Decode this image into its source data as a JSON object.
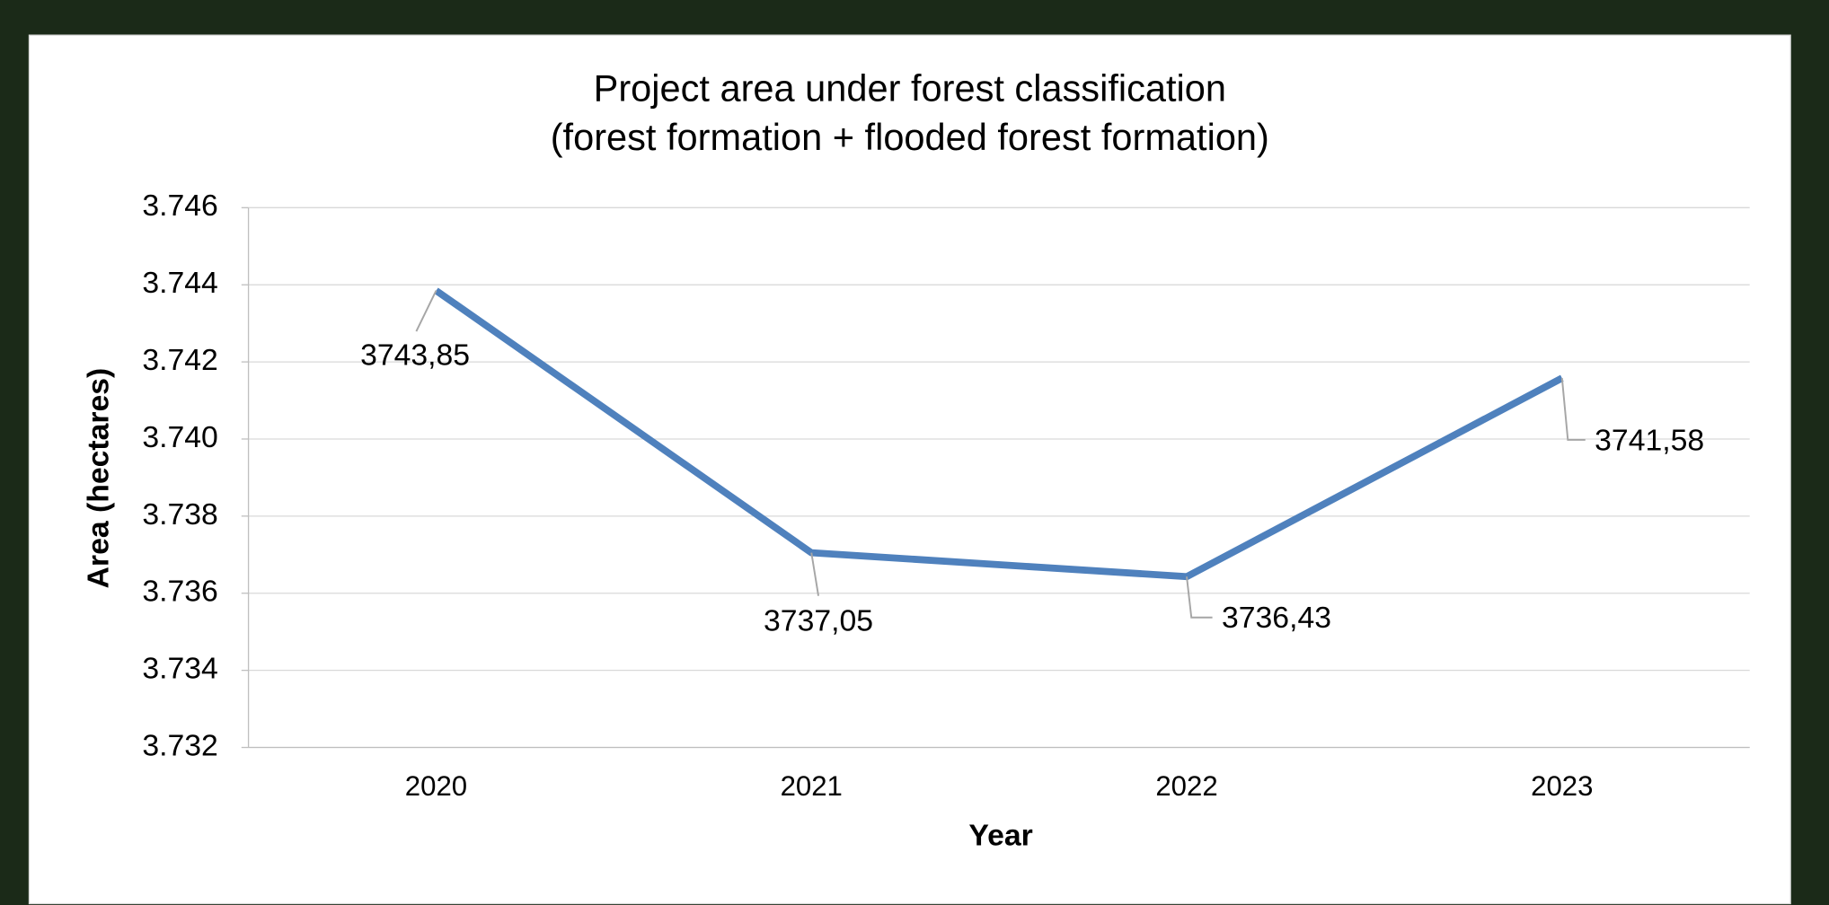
{
  "chart_data": {
    "type": "line",
    "title": "Project area under forest classification",
    "subtitle": "(forest formation + flooded forest formation)",
    "x_label": "Year",
    "y_label": "Area (hectares)",
    "categories": [
      "2020",
      "2021",
      "2022",
      "2023"
    ],
    "series": [
      {
        "name": "Area",
        "color": "#4f81bd",
        "values": [
          3743.85,
          3737.05,
          3736.43,
          3741.58
        ],
        "value_labels": [
          "3743,85",
          "3737,05",
          "3736,43",
          "3741,58"
        ]
      }
    ],
    "ylim": [
      3732,
      3746
    ],
    "yticks": [
      {
        "value": 3732,
        "label": "3.732"
      },
      {
        "value": 3734,
        "label": "3.734"
      },
      {
        "value": 3736,
        "label": "3.736"
      },
      {
        "value": 3738,
        "label": "3.738"
      },
      {
        "value": 3740,
        "label": "3.740"
      },
      {
        "value": 3742,
        "label": "3.742"
      },
      {
        "value": 3744,
        "label": "3.744"
      },
      {
        "value": 3746,
        "label": "3.746"
      }
    ],
    "grid": true
  }
}
